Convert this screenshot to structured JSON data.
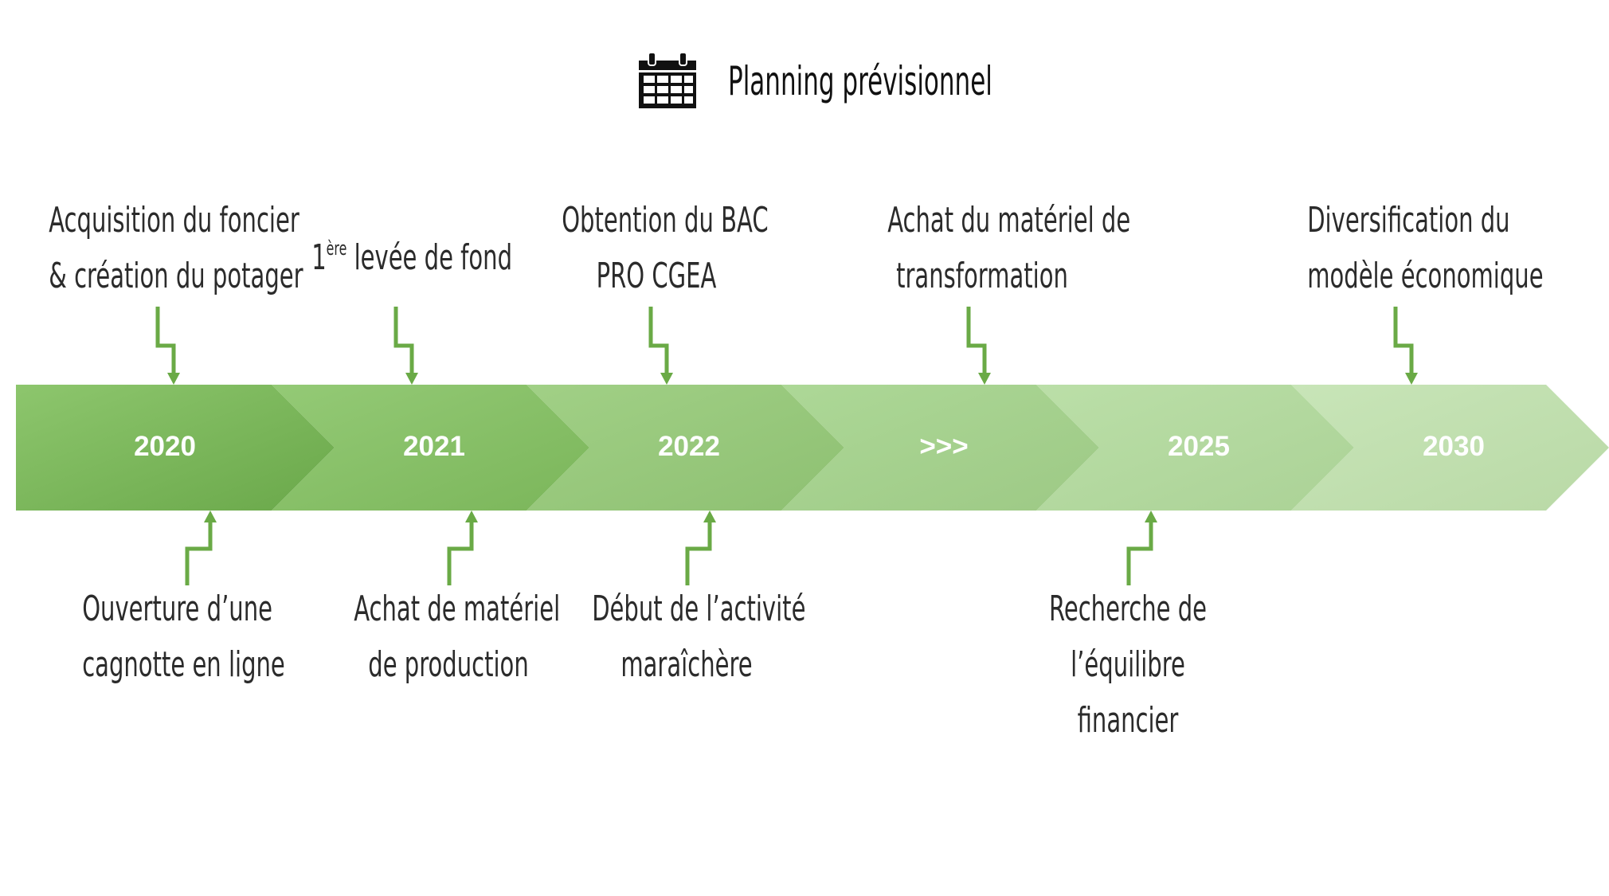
{
  "header": {
    "title": "Planning prévisionnel",
    "icon": "calendar-icon"
  },
  "timeline": {
    "segments": [
      {
        "label": "2020",
        "color": "#7ab55c"
      },
      {
        "label": "2021",
        "color": "#86bd68"
      },
      {
        "label": "2022",
        "color": "#95c67a"
      },
      {
        "label": ">>>",
        "color": "#a4cf8d"
      },
      {
        "label": "2025",
        "color": "#b2d7a0"
      },
      {
        "label": "2030",
        "color": "#c2dfb2"
      }
    ]
  },
  "events_top": [
    {
      "lines": [
        "Acquisition du foncier",
        "& création du potager"
      ]
    },
    {
      "sup": "ère",
      "prefix": "1",
      "lines": [
        " levée de fond"
      ]
    },
    {
      "lines": [
        "Obtention du BAC",
        "PRO CGEA"
      ]
    },
    {
      "lines": [
        "Achat du matériel de",
        "transformation"
      ]
    },
    {
      "lines": [
        "Diversification du",
        "modèle économique"
      ]
    }
  ],
  "events_bottom": [
    {
      "lines": [
        "Ouverture d’une",
        "cagnotte en ligne"
      ]
    },
    {
      "lines": [
        "Achat de matériel",
        "de production"
      ]
    },
    {
      "lines": [
        "Début de l’activité",
        "maraîchère"
      ]
    },
    {
      "lines": [
        "Recherche de",
        "l’équilibre",
        "financier"
      ]
    }
  ],
  "colors": {
    "arrow": "#6aaa46",
    "text": "#2b2b2b"
  }
}
